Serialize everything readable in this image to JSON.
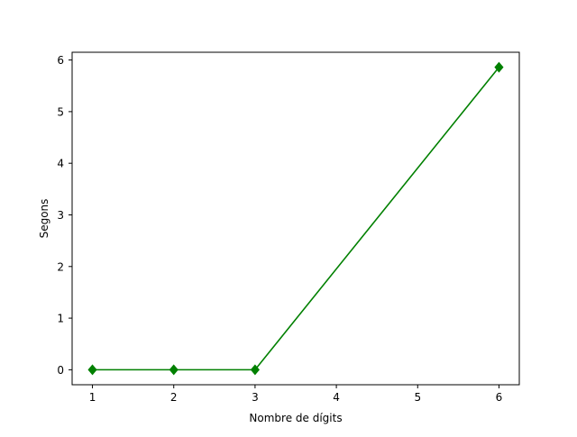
{
  "chart_data": {
    "type": "line",
    "title": "",
    "xlabel": "Nombre de dígits",
    "ylabel": "Segons",
    "xlim": [
      0.75,
      6.25
    ],
    "ylim": [
      -0.29,
      6.15
    ],
    "x_ticks": [
      1,
      2,
      3,
      4,
      5,
      6
    ],
    "y_ticks": [
      0,
      1,
      2,
      3,
      4,
      5,
      6
    ],
    "grid": false,
    "legend": "none",
    "series": [
      {
        "color": "#008000",
        "marker": "diamond",
        "x": [
          1,
          2,
          3,
          6
        ],
        "y": [
          0.0,
          0.0,
          0.0,
          5.86
        ]
      }
    ]
  }
}
